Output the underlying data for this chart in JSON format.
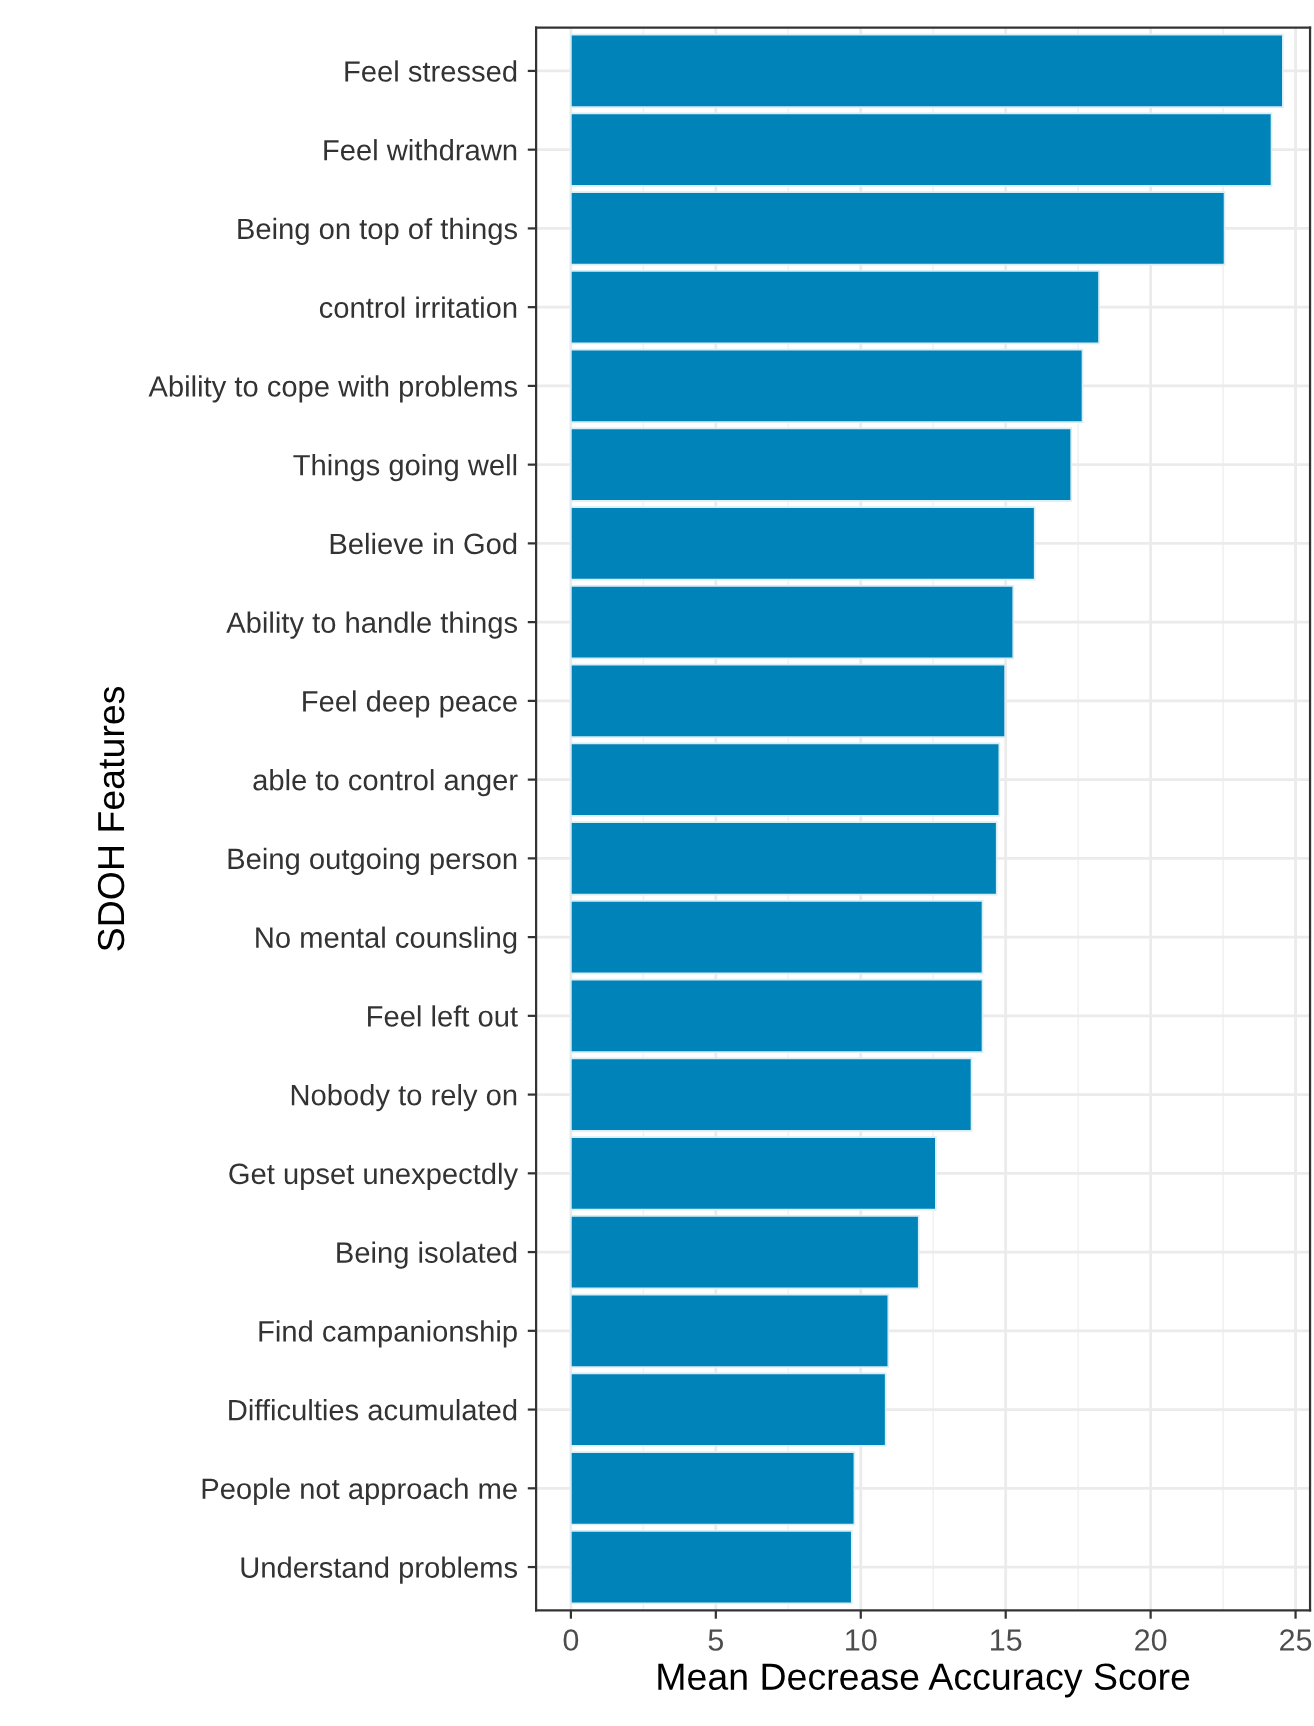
{
  "chart_data": {
    "type": "bar",
    "orientation": "horizontal",
    "xlabel": "Mean Decrease Accuracy Score",
    "ylabel": "SDOH Features",
    "categories": [
      "Feel stressed",
      "Feel withdrawn",
      "Being on top of things",
      "control irritation",
      "Ability to cope with problems",
      "Things going well",
      "Believe in God",
      "Ability to handle things",
      "Feel deep peace",
      "able to control anger",
      "Being outgoing person",
      "No mental counsling",
      "Feel left out",
      "Nobody to rely on",
      "Get upset unexpectdly",
      "Being isolated",
      "Find campanionship",
      "Difficulties acumulated",
      "People not approach me",
      "Understand problems"
    ],
    "values": [
      24.56,
      24.17,
      22.55,
      18.22,
      17.65,
      17.26,
      16.0,
      15.26,
      14.98,
      14.78,
      14.69,
      14.2,
      14.2,
      13.82,
      12.59,
      12.0,
      10.95,
      10.86,
      9.78,
      9.69
    ],
    "color": "#0083b8",
    "xlim": [
      -1.2,
      25.5
    ],
    "xticks": [
      0,
      5,
      10,
      15,
      20,
      25
    ],
    "grid": true
  }
}
